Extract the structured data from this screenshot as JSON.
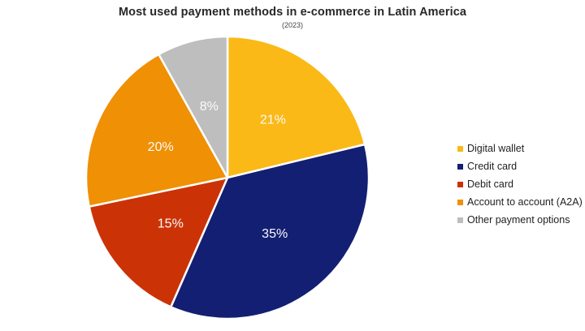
{
  "title": "Most used payment methods in e-commerce in Latin America",
  "subtitle": "(2023)",
  "colors": {
    "background": "#ffffff",
    "title_text": "#28282b",
    "subtitle_text": "#454548",
    "legend_text": "#1f1f23",
    "slice_label_text": "#fbfbfb",
    "slice_divider": "#ffffff"
  },
  "chart_data": {
    "type": "pie",
    "title": "Most used payment methods in e-commerce in Latin America",
    "subtitle": "(2023)",
    "start_angle_deg": 0,
    "direction": "clockwise",
    "legend_position": "right",
    "labels_inside_slices": true,
    "slices": [
      {
        "label": "Digital wallet",
        "value": 21,
        "display": "21%",
        "color": "#FBB917"
      },
      {
        "label": "Credit card",
        "value": 35,
        "display": "35%",
        "color": "#131F72"
      },
      {
        "label": "Debit card",
        "value": 15,
        "display": "15%",
        "color": "#CB3307"
      },
      {
        "label": "Account to account (A2A)",
        "value": 20,
        "display": "20%",
        "color": "#EF9005"
      },
      {
        "label": "Other payment options",
        "value": 8,
        "display": "8%",
        "color": "#BEBEBE"
      }
    ]
  }
}
